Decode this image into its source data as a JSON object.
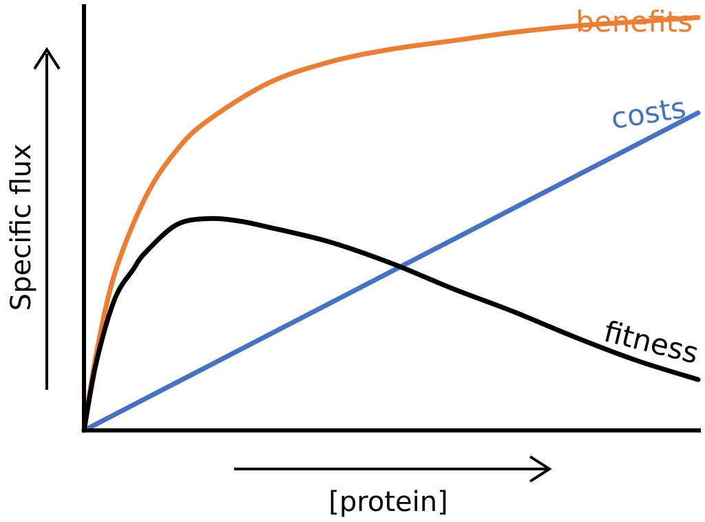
{
  "chart_data": {
    "type": "line",
    "title": "",
    "xlabel": "[protein]",
    "ylabel": "Specific flux",
    "xlim": [
      0,
      1
    ],
    "ylim": [
      0,
      1
    ],
    "grid": false,
    "ticks_shown": false,
    "series": [
      {
        "name": "benefits",
        "color": "#ED7D31",
        "x": [
          0,
          0.02,
          0.05,
          0.1,
          0.15,
          0.2,
          0.3,
          0.4,
          0.5,
          0.6,
          0.7,
          0.8,
          0.9,
          1.0
        ],
        "y": [
          0,
          0.18,
          0.37,
          0.55,
          0.66,
          0.73,
          0.82,
          0.87,
          0.9,
          0.92,
          0.94,
          0.955,
          0.965,
          0.975
        ]
      },
      {
        "name": "costs",
        "color": "#4472C4",
        "x": [
          0,
          1.0
        ],
        "y": [
          0,
          0.75
        ]
      },
      {
        "name": "fitness",
        "color": "#000000",
        "x": [
          0,
          0.02,
          0.05,
          0.08,
          0.1,
          0.15,
          0.2,
          0.25,
          0.3,
          0.4,
          0.5,
          0.6,
          0.7,
          0.8,
          0.9,
          1.0
        ],
        "y": [
          0,
          0.16,
          0.31,
          0.38,
          0.42,
          0.485,
          0.5,
          0.495,
          0.48,
          0.445,
          0.395,
          0.335,
          0.28,
          0.22,
          0.165,
          0.12
        ]
      }
    ]
  }
}
